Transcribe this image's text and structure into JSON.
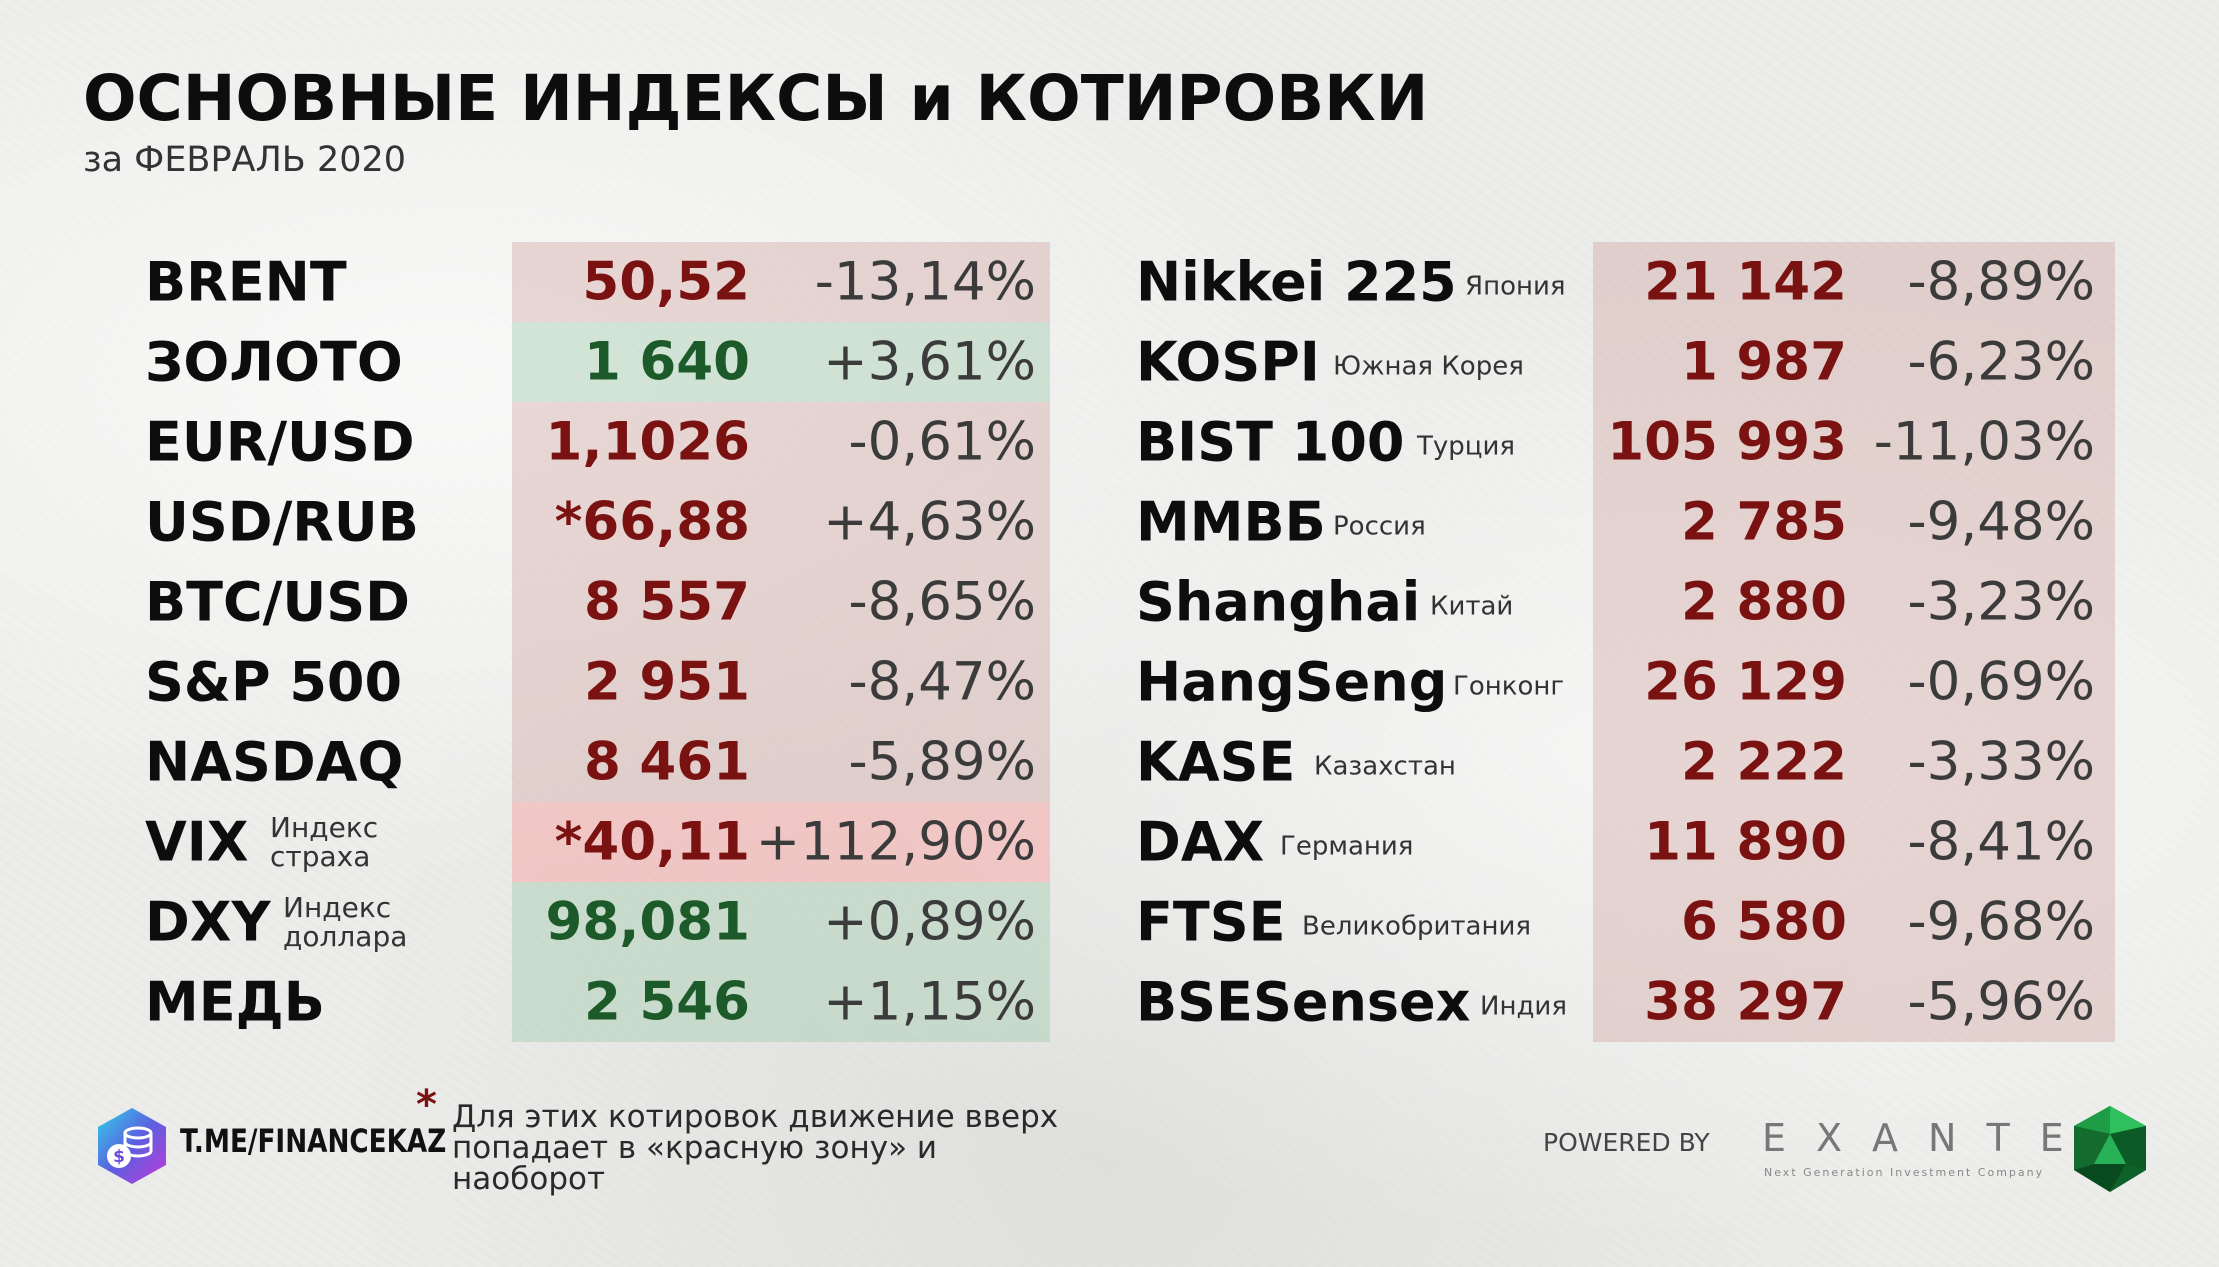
{
  "header": {
    "title": "ОСНОВНЫЕ ИНДЕКСЫ и КОТИРОВКИ",
    "subtitle": "за ФЕВРАЛЬ 2020"
  },
  "left_table": [
    {
      "name": "BRENT",
      "sub": "",
      "value": "50,52",
      "change": "-13,14%",
      "zone": "red"
    },
    {
      "name": "ЗОЛОТО",
      "sub": "",
      "value": "1 640",
      "change": "+3,61%",
      "zone": "green"
    },
    {
      "name": "EUR/USD",
      "sub": "",
      "value": "1,1026",
      "change": "-0,61%",
      "zone": "red"
    },
    {
      "name": "USD/RUB",
      "sub": "",
      "value": "*66,88",
      "change": "+4,63%",
      "zone": "red"
    },
    {
      "name": "BTC/USD",
      "sub": "",
      "value": "8 557",
      "change": "-8,65%",
      "zone": "red"
    },
    {
      "name": "S&P 500",
      "sub": "",
      "value": "2 951",
      "change": "-8,47%",
      "zone": "red"
    },
    {
      "name": "NASDAQ",
      "sub": "",
      "value": "8 461",
      "change": "-5,89%",
      "zone": "red"
    },
    {
      "name": "VIX",
      "sub": "Индекс страха",
      "sub1": "Индекс",
      "sub2": "страха",
      "value": "*40,11",
      "change": "+112,90%",
      "zone": "pink"
    },
    {
      "name": "DXY",
      "sub": "Индекс доллара",
      "sub1": "Индекс",
      "sub2": "доллара",
      "value": "98,081",
      "change": "+0,89%",
      "zone": "green"
    },
    {
      "name": "МЕДЬ",
      "sub": "",
      "value": "2 546",
      "change": "+1,15%",
      "zone": "green"
    }
  ],
  "right_table": [
    {
      "name": "Nikkei 225",
      "country": "Япония",
      "value": "21 142",
      "change": "-8,89%",
      "zone": "red"
    },
    {
      "name": "KOSPI",
      "country": "Южная Корея",
      "value": "1 987",
      "change": "-6,23%",
      "zone": "red"
    },
    {
      "name": "BIST 100",
      "country": "Турция",
      "value": "105 993",
      "change": "-11,03%",
      "zone": "red"
    },
    {
      "name": "ММВБ",
      "country": "Россия",
      "value": "2 785",
      "change": "-9,48%",
      "zone": "red"
    },
    {
      "name": "Shanghai",
      "country": "Китай",
      "value": "2 880",
      "change": "-3,23%",
      "zone": "red"
    },
    {
      "name": "HangSeng",
      "country": "Гонконг",
      "value": "26 129",
      "change": "-0,69%",
      "zone": "red"
    },
    {
      "name": "KASE",
      "country": "Казахстан",
      "value": "2 222",
      "change": "-3,33%",
      "zone": "red"
    },
    {
      "name": "DAX",
      "country": "Германия",
      "value": "11 890",
      "change": "-8,41%",
      "zone": "red"
    },
    {
      "name": "FTSE",
      "country": "Великобритания",
      "value": "6 580",
      "change": "-9,68%",
      "zone": "red"
    },
    {
      "name": "BSESensex",
      "country": "Индия",
      "value": "38 297",
      "change": "-5,96%",
      "zone": "red"
    }
  ],
  "footer": {
    "link": "T.ME/FINANCEKAZ",
    "asterisk": "*",
    "note": "Для этих котировок движение вверх попадает в «красную зону» и наоборот",
    "powered_by": "POWERED BY",
    "brand": "EXANTE",
    "brand_tagline": "Next Generation Investment Company"
  },
  "icons": {
    "channel_logo": "hexagon-coins-dollar-icon",
    "brand_logo": "green-emerald-icon"
  },
  "colors": {
    "red_value": "#7a1212",
    "green_value": "#1d5a2a",
    "red_zone": "#dcc3c0",
    "green_zone": "#c5ddc9",
    "pink_zone": "#f4c4c4"
  }
}
